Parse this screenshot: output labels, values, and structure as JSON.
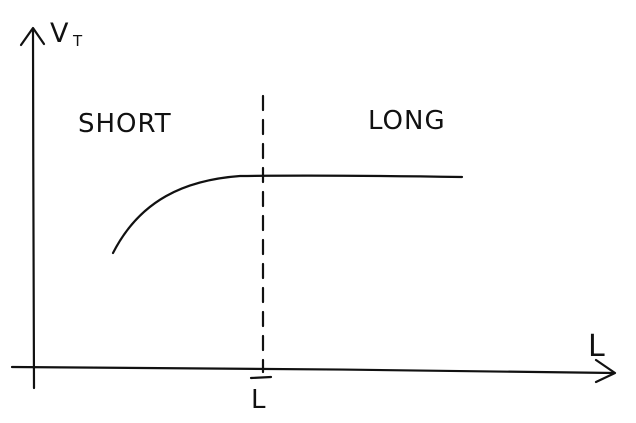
{
  "axes": {
    "y_label_main": "V",
    "y_label_sub": "T",
    "x_label": "L",
    "x_marker_label": "L"
  },
  "regions": {
    "left": "SHORT",
    "right": "LONG"
  },
  "colors": {
    "ink": "#111111",
    "background": "#ffffff"
  }
}
